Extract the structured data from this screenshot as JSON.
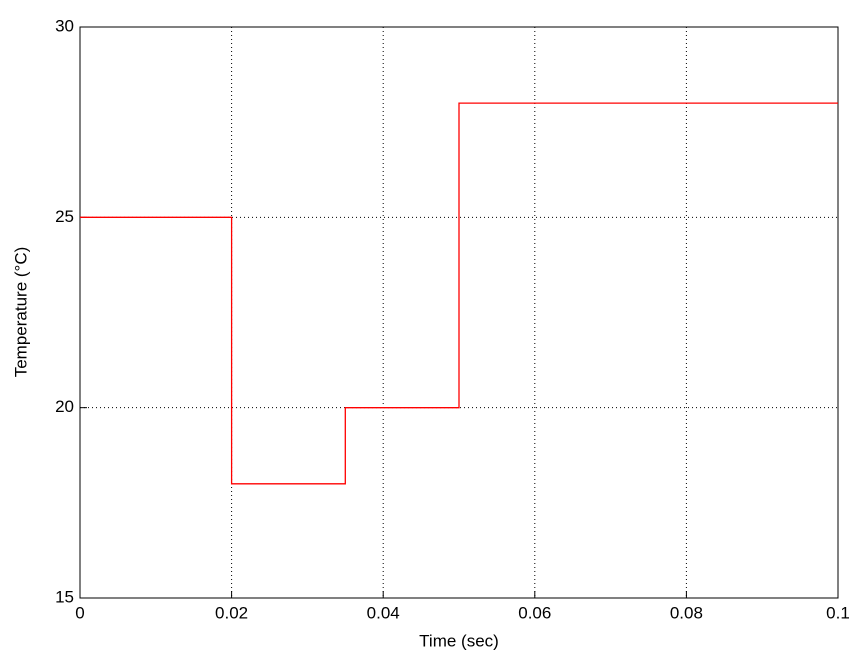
{
  "chart_data": {
    "type": "line",
    "xlabel": "Time (sec)",
    "ylabel": "Temperature (°C)",
    "x": [
      0,
      0.02,
      0.02,
      0.035,
      0.035,
      0.05,
      0.05,
      0.1
    ],
    "series": [
      {
        "color": "#ff0000",
        "values": [
          25,
          25,
          18,
          18,
          20,
          20,
          28,
          28
        ]
      }
    ],
    "xlim": [
      0,
      0.1
    ],
    "ylim": [
      15,
      30
    ],
    "xticks": [
      0,
      0.02,
      0.04,
      0.06,
      0.08,
      0.1
    ],
    "yticks": [
      15,
      20,
      25,
      30
    ],
    "grid": true
  }
}
